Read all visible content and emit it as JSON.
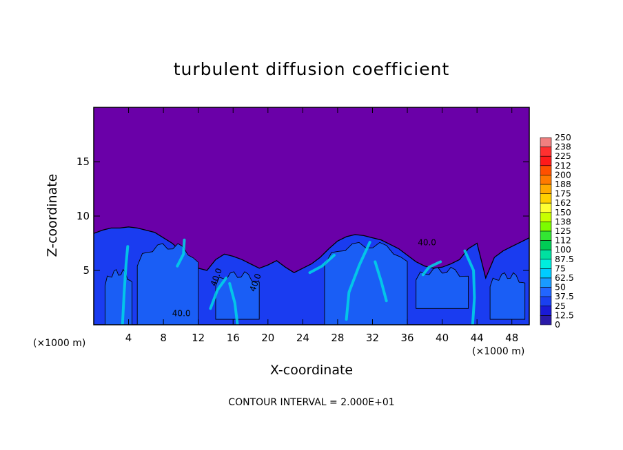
{
  "chart_data": {
    "type": "heatmap",
    "title": "turbulent diffusion coefficient",
    "xlabel": "X-coordinate",
    "ylabel": "Z-coordinate",
    "x_unit_label": "(×1000 m)",
    "xlim": [
      0,
      50
    ],
    "ylim": [
      0,
      20
    ],
    "x_ticks": [
      "4",
      "8",
      "12",
      "16",
      "20",
      "24",
      "28",
      "32",
      "36",
      "40",
      "44",
      "48"
    ],
    "y_ticks": [
      "5",
      "10",
      "15"
    ],
    "colorbar_labels": [
      "250",
      "238",
      "225",
      "212",
      "200",
      "188",
      "175",
      "162",
      "150",
      "138",
      "125",
      "112",
      "100",
      "87.5",
      "75",
      "62.5",
      "50",
      "37.5",
      "25",
      "12.5",
      "0"
    ],
    "colorbar_colors": [
      "#f08080",
      "#ff3030",
      "#ff1a1a",
      "#ff5000",
      "#ff7a00",
      "#ffaa00",
      "#ffd000",
      "#ffff33",
      "#c8ff00",
      "#7cfc00",
      "#33e633",
      "#00cc55",
      "#00e0a0",
      "#00eedd",
      "#00ccff",
      "#1a9bff",
      "#2266ff",
      "#1a40f0",
      "#1a1ad6",
      "#2a1aa8",
      "#6a00a8"
    ],
    "contour_labels": [
      "40.0",
      "40.0",
      "40.0",
      "40.0"
    ],
    "footnote": "CONTOUR INTERVAL = 2.000E+01",
    "boundary_layer_top": {
      "x": [
        0,
        1,
        2,
        3,
        4,
        5,
        6,
        7,
        8,
        9,
        10,
        11,
        12,
        13,
        14,
        15,
        16,
        17,
        18,
        19,
        20,
        21,
        22,
        23,
        24,
        25,
        26,
        27,
        28,
        29,
        30,
        31,
        32,
        33,
        34,
        35,
        36,
        37,
        38,
        39,
        40,
        41,
        42,
        43,
        44,
        45,
        46,
        47,
        48,
        49,
        50
      ],
      "z": [
        8.4,
        8.7,
        8.9,
        8.9,
        9.0,
        8.9,
        8.7,
        8.5,
        8.0,
        7.5,
        6.8,
        6.0,
        5.2,
        5.0,
        6.0,
        6.5,
        6.3,
        6.0,
        5.6,
        5.2,
        5.5,
        5.9,
        5.3,
        4.8,
        5.2,
        5.6,
        6.2,
        7.0,
        7.7,
        8.1,
        8.3,
        8.2,
        8.0,
        7.8,
        7.4,
        7.0,
        6.4,
        5.8,
        5.4,
        5.2,
        5.3,
        5.6,
        6.0,
        7.0,
        7.5,
        4.3,
        6.2,
        6.8,
        7.2,
        7.6,
        8.0
      ]
    }
  },
  "style": {
    "background_color": "#6a00a8",
    "boundary_color": "#1a3cf0",
    "core_color": "#1a5ef5",
    "streak_color": "#00d7e6"
  }
}
